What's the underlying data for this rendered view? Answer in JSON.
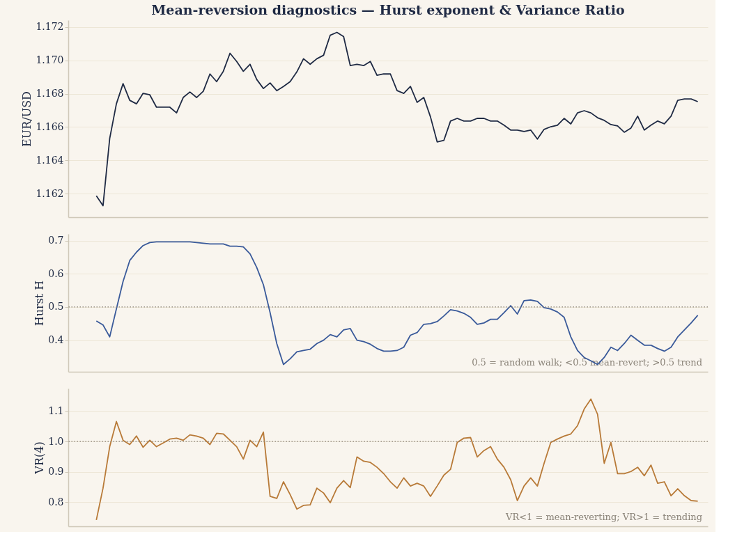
{
  "chart_data": [
    {
      "type": "line",
      "title": "Mean-reversion diagnostics — Hurst exponent & Variance Ratio",
      "ylabel": "EUR/USD",
      "categories": [
        null,
        null,
        null,
        null,
        null,
        null,
        null,
        null,
        null,
        null,
        null,
        null,
        null,
        null,
        null,
        null,
        null,
        null,
        null,
        null,
        null,
        null,
        null,
        null,
        null,
        null,
        null,
        null,
        null,
        null,
        null,
        null,
        null,
        null,
        null,
        null,
        null,
        null,
        null,
        null,
        null,
        null,
        null,
        null,
        null,
        null,
        null,
        null,
        null,
        null,
        null,
        null,
        null,
        null,
        null,
        null,
        null,
        null,
        null,
        null,
        null,
        null,
        null,
        null,
        null,
        null,
        null,
        null,
        null,
        null,
        null,
        null,
        null,
        null,
        null,
        null,
        null,
        null,
        null,
        null,
        null,
        null,
        null,
        null,
        null,
        null,
        null,
        null,
        null,
        null,
        null
      ],
      "series": [
        {
          "color": "#1f2a44",
          "values": [
            1.16188,
            1.16129,
            1.16532,
            1.16739,
            1.1686,
            1.1676,
            1.16739,
            1.16802,
            1.16793,
            1.16719,
            1.16719,
            1.16719,
            1.16685,
            1.16777,
            1.1681,
            1.16777,
            1.16814,
            1.16918,
            1.16872,
            1.16934,
            1.17042,
            1.16993,
            1.16934,
            1.16976,
            1.16885,
            1.16831,
            1.16864,
            1.16818,
            1.16843,
            1.16872,
            1.1693,
            1.17009,
            1.16976,
            1.17009,
            1.1703,
            1.1715,
            1.17167,
            1.17142,
            1.16968,
            1.16976,
            1.16968,
            1.16993,
            1.1691,
            1.16918,
            1.16918,
            1.16818,
            1.16802,
            1.16843,
            1.16748,
            1.16777,
            1.16661,
            1.16511,
            1.1652,
            1.16636,
            1.16652,
            1.16636,
            1.16636,
            1.16652,
            1.16652,
            1.16636,
            1.16636,
            1.16611,
            1.16582,
            1.16582,
            1.16573,
            1.16582,
            1.16528,
            1.16586,
            1.16602,
            1.16611,
            1.16652,
            1.16619,
            1.16685,
            1.16698,
            1.16685,
            1.16656,
            1.1664,
            1.16615,
            1.16607,
            1.16569,
            1.16594,
            1.16665,
            1.16582,
            1.16611,
            1.16636,
            1.16619,
            1.16665,
            1.1676,
            1.16768,
            1.16768,
            1.16752
          ]
        }
      ],
      "ylim": [
        1.1606,
        1.1724
      ],
      "yticks": [
        1.162,
        1.164,
        1.166,
        1.168,
        {
          "value": 1.17,
          "label": "1.170"
        },
        1.172
      ],
      "grid": "y",
      "tick_labels": "y",
      "marker": "none",
      "line_style": "solid"
    },
    {
      "type": "line",
      "ylabel": "Hurst H",
      "annotations": [
        "0.5 = random walk; <0.5 mean-revert; >0.5 trend"
      ],
      "categories": [
        null,
        null,
        null,
        null,
        null,
        null,
        null,
        null,
        null,
        null,
        null,
        null,
        null,
        null,
        null,
        null,
        null,
        null,
        null,
        null,
        null,
        null,
        null,
        null,
        null,
        null,
        null,
        null,
        null,
        null,
        null,
        null,
        null,
        null,
        null,
        null,
        null,
        null,
        null,
        null,
        null,
        null,
        null,
        null,
        null,
        null,
        null,
        null,
        null,
        null,
        null,
        null,
        null,
        null,
        null,
        null,
        null,
        null,
        null,
        null,
        null,
        null,
        null,
        null,
        null,
        null,
        null,
        null,
        null,
        null,
        null,
        null,
        null,
        null,
        null,
        null,
        null,
        null,
        null,
        null,
        null,
        null,
        null,
        null,
        null,
        null,
        null,
        null,
        null,
        null,
        null
      ],
      "series": [
        {
          "color": "#3a5a9a",
          "values": [
            0.458,
            0.446,
            0.41,
            0.494,
            0.577,
            0.64,
            0.665,
            0.685,
            0.694,
            0.696,
            0.696,
            0.696,
            0.696,
            0.696,
            0.696,
            0.694,
            0.692,
            0.69,
            0.69,
            0.69,
            0.683,
            0.683,
            0.681,
            0.66,
            0.619,
            0.567,
            0.483,
            0.39,
            0.327,
            0.344,
            0.365,
            0.369,
            0.373,
            0.39,
            0.4,
            0.417,
            0.41,
            0.431,
            0.435,
            0.4,
            0.396,
            0.388,
            0.375,
            0.367,
            0.367,
            0.369,
            0.379,
            0.415,
            0.423,
            0.448,
            0.45,
            0.456,
            0.473,
            0.492,
            0.488,
            0.481,
            0.469,
            0.448,
            0.452,
            0.463,
            0.463,
            0.483,
            0.504,
            0.479,
            0.519,
            0.521,
            0.517,
            0.498,
            0.494,
            0.485,
            0.469,
            0.41,
            0.369,
            0.348,
            0.338,
            0.327,
            0.348,
            0.379,
            0.369,
            0.39,
            0.415,
            0.4,
            0.385,
            0.385,
            0.375,
            0.367,
            0.379,
            0.41,
            0.431,
            0.452,
            0.475
          ]
        }
      ],
      "ylim": [
        0.305,
        0.72
      ],
      "yticks": [
        0.4,
        0.5,
        0.6,
        0.7
      ],
      "grid": "y",
      "tick_labels": "y",
      "marker": "none",
      "line_style": "solid",
      "ref_lines": [
        {
          "axis": "y",
          "value": 0.5,
          "color": "#8a8378",
          "line_style": "dotted"
        }
      ]
    },
    {
      "type": "line",
      "ylabel": "VR(4)",
      "annotations": [
        "VR<1 = mean-reverting; VR>1 = trending"
      ],
      "categories": [
        null,
        null,
        null,
        null,
        null,
        null,
        null,
        null,
        null,
        null,
        null,
        null,
        null,
        null,
        null,
        null,
        null,
        null,
        null,
        null,
        null,
        null,
        null,
        null,
        null,
        null,
        null,
        null,
        null,
        null,
        null,
        null,
        null,
        null,
        null,
        null,
        null,
        null,
        null,
        null,
        null,
        null,
        null,
        null,
        null,
        null,
        null,
        null,
        null,
        null,
        null,
        null,
        null,
        null,
        null,
        null,
        null,
        null,
        null,
        null,
        null,
        null,
        null,
        null,
        null,
        null,
        null,
        null,
        null,
        null,
        null,
        null,
        null,
        null,
        null,
        null,
        null,
        null,
        null,
        null,
        null,
        null,
        null,
        null,
        null,
        null,
        null,
        null,
        null,
        null,
        null
      ],
      "series": [
        {
          "color": "#b87a38",
          "values": [
            0.741,
            0.846,
            0.983,
            1.066,
            1.004,
            0.99,
            1.018,
            0.981,
            1.004,
            0.983,
            0.995,
            1.008,
            1.011,
            1.004,
            1.022,
            1.018,
            1.011,
            0.99,
            1.027,
            1.025,
            1.004,
            0.983,
            0.942,
            1.004,
            0.983,
            1.031,
            0.819,
            0.812,
            0.867,
            0.825,
            0.777,
            0.789,
            0.791,
            0.846,
            0.83,
            0.798,
            0.846,
            0.871,
            0.848,
            0.949,
            0.935,
            0.931,
            0.915,
            0.894,
            0.867,
            0.846,
            0.88,
            0.853,
            0.862,
            0.853,
            0.819,
            0.853,
            0.889,
            0.908,
            0.997,
            1.011,
            1.013,
            0.949,
            0.97,
            0.983,
            0.942,
            0.915,
            0.874,
            0.805,
            0.853,
            0.88,
            0.853,
            0.928,
            0.997,
            1.008,
            1.018,
            1.025,
            1.052,
            1.107,
            1.14,
            1.09,
            0.928,
            0.997,
            0.894,
            0.894,
            0.901,
            0.915,
            0.887,
            0.922,
            0.862,
            0.867,
            0.821,
            0.844,
            0.821,
            0.805,
            0.803
          ]
        }
      ],
      "ylim": [
        0.72,
        1.175
      ],
      "yticks": [
        0.8,
        0.9,
        {
          "value": 1.0,
          "label": "1.0"
        },
        1.1
      ],
      "grid": "y",
      "tick_labels": "y",
      "marker": "none",
      "line_style": "solid",
      "ref_lines": [
        {
          "axis": "y",
          "value": 1.0,
          "color": "#8a8378",
          "line_style": "dotted"
        }
      ]
    }
  ]
}
